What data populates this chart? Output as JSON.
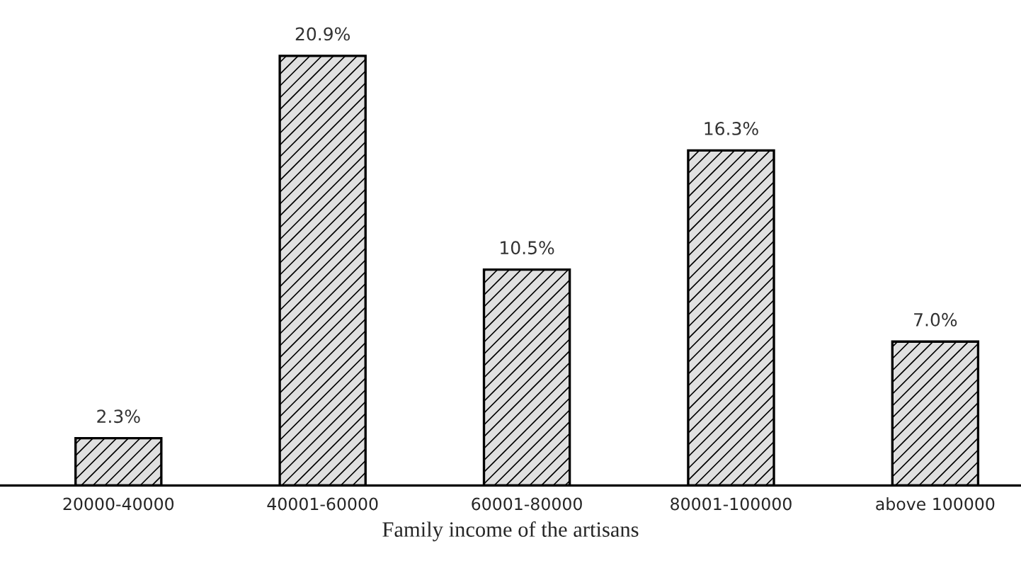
{
  "chart_data": {
    "type": "bar",
    "xlabel": "Family income of the artisans",
    "categories": [
      "20000-40000",
      "40001-60000",
      "60001-80000",
      "80001-100000",
      "above 100000"
    ],
    "values": [
      2.3,
      20.9,
      10.5,
      16.3,
      7.0
    ],
    "value_labels": [
      "2.3%",
      "20.9%",
      "10.5%",
      "16.3%",
      "7.0%"
    ],
    "grid": false,
    "legend": false
  }
}
